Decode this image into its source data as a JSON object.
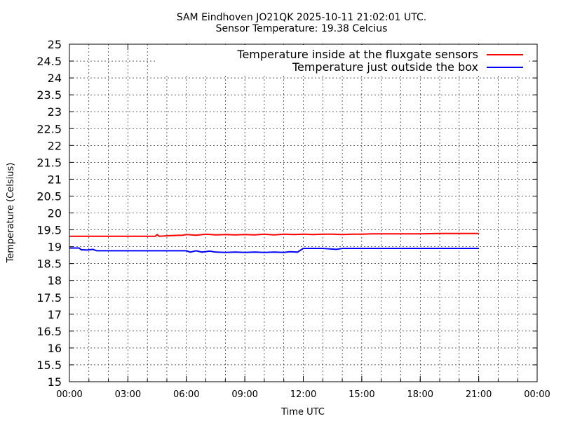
{
  "chart_data": {
    "type": "line",
    "title": "SAM Eindhoven JO21QK 2025-10-11 21:02:01 UTC.",
    "subtitle": "Sensor Temperature: 19.38 Celcius",
    "xlabel": "Time UTC",
    "ylabel": "Temperature (Celsius)",
    "xlim": [
      0,
      24
    ],
    "ylim": [
      15,
      25
    ],
    "x_ticks": [
      {
        "value": 0,
        "label": "00:00"
      },
      {
        "value": 3,
        "label": "03:00"
      },
      {
        "value": 6,
        "label": "06:00"
      },
      {
        "value": 9,
        "label": "09:00"
      },
      {
        "value": 12,
        "label": "12:00"
      },
      {
        "value": 15,
        "label": "15:00"
      },
      {
        "value": 18,
        "label": "18:00"
      },
      {
        "value": 21,
        "label": "21:00"
      },
      {
        "value": 24,
        "label": "00:00"
      }
    ],
    "y_ticks": [
      {
        "value": 25,
        "label": "25"
      },
      {
        "value": 24.5,
        "label": "24.5"
      },
      {
        "value": 24,
        "label": "24"
      },
      {
        "value": 23.5,
        "label": "23.5"
      },
      {
        "value": 23,
        "label": "23"
      },
      {
        "value": 22.5,
        "label": "22.5"
      },
      {
        "value": 22,
        "label": "22"
      },
      {
        "value": 21.5,
        "label": "21.5"
      },
      {
        "value": 21,
        "label": "21"
      },
      {
        "value": 20.5,
        "label": "20.5"
      },
      {
        "value": 20,
        "label": "20"
      },
      {
        "value": 19.5,
        "label": "19.5"
      },
      {
        "value": 19,
        "label": "19"
      },
      {
        "value": 18.5,
        "label": "18.5"
      },
      {
        "value": 18,
        "label": "18"
      },
      {
        "value": 17.5,
        "label": "17.5"
      },
      {
        "value": 17,
        "label": "17"
      },
      {
        "value": 16.5,
        "label": "16.5"
      },
      {
        "value": 16,
        "label": "16"
      },
      {
        "value": 15.5,
        "label": "15.5"
      },
      {
        "value": 15,
        "label": "15"
      }
    ],
    "grid": true,
    "x_minor_ticks_per_major": 3,
    "legend_position": "top-right",
    "series": [
      {
        "name": "Temperature inside at the fluxgate sensors",
        "color": "#ff0000",
        "x": [
          0,
          4.4,
          4.5,
          4.6,
          5.2,
          5.8,
          6.0,
          6.5,
          7.0,
          7.5,
          8.0,
          8.5,
          9.0,
          9.5,
          10.0,
          10.5,
          11.0,
          11.5,
          12.0,
          12.5,
          13.0,
          13.5,
          14.0,
          14.5,
          15.0,
          15.5,
          16.0,
          17.0,
          18.0,
          19.0,
          20.0,
          20.5,
          21.0
        ],
        "y": [
          19.31,
          19.31,
          19.36,
          19.31,
          19.33,
          19.34,
          19.36,
          19.34,
          19.37,
          19.35,
          19.36,
          19.35,
          19.36,
          19.35,
          19.37,
          19.35,
          19.37,
          19.36,
          19.37,
          19.36,
          19.37,
          19.37,
          19.36,
          19.37,
          19.37,
          19.38,
          19.38,
          19.38,
          19.38,
          19.39,
          19.39,
          19.39,
          19.39
        ]
      },
      {
        "name": "Temperature just outside the box",
        "color": "#0000ff",
        "x": [
          0,
          0.5,
          0.6,
          0.9,
          1.2,
          1.4,
          3.0,
          6.0,
          6.2,
          6.5,
          6.8,
          7.2,
          7.5,
          8.0,
          8.5,
          9.0,
          9.5,
          10.0,
          10.5,
          11.0,
          11.3,
          11.7,
          12.0,
          12.5,
          13.0,
          13.7,
          14.0,
          15.0,
          16.0,
          18.0,
          20.0,
          21.0
        ],
        "y": [
          18.96,
          18.96,
          18.91,
          18.9,
          18.92,
          18.88,
          18.88,
          18.88,
          18.84,
          18.88,
          18.84,
          18.87,
          18.84,
          18.83,
          18.84,
          18.83,
          18.84,
          18.83,
          18.84,
          18.83,
          18.85,
          18.84,
          18.95,
          18.95,
          18.95,
          18.92,
          18.95,
          18.95,
          18.95,
          18.95,
          18.95,
          18.95
        ]
      }
    ]
  }
}
